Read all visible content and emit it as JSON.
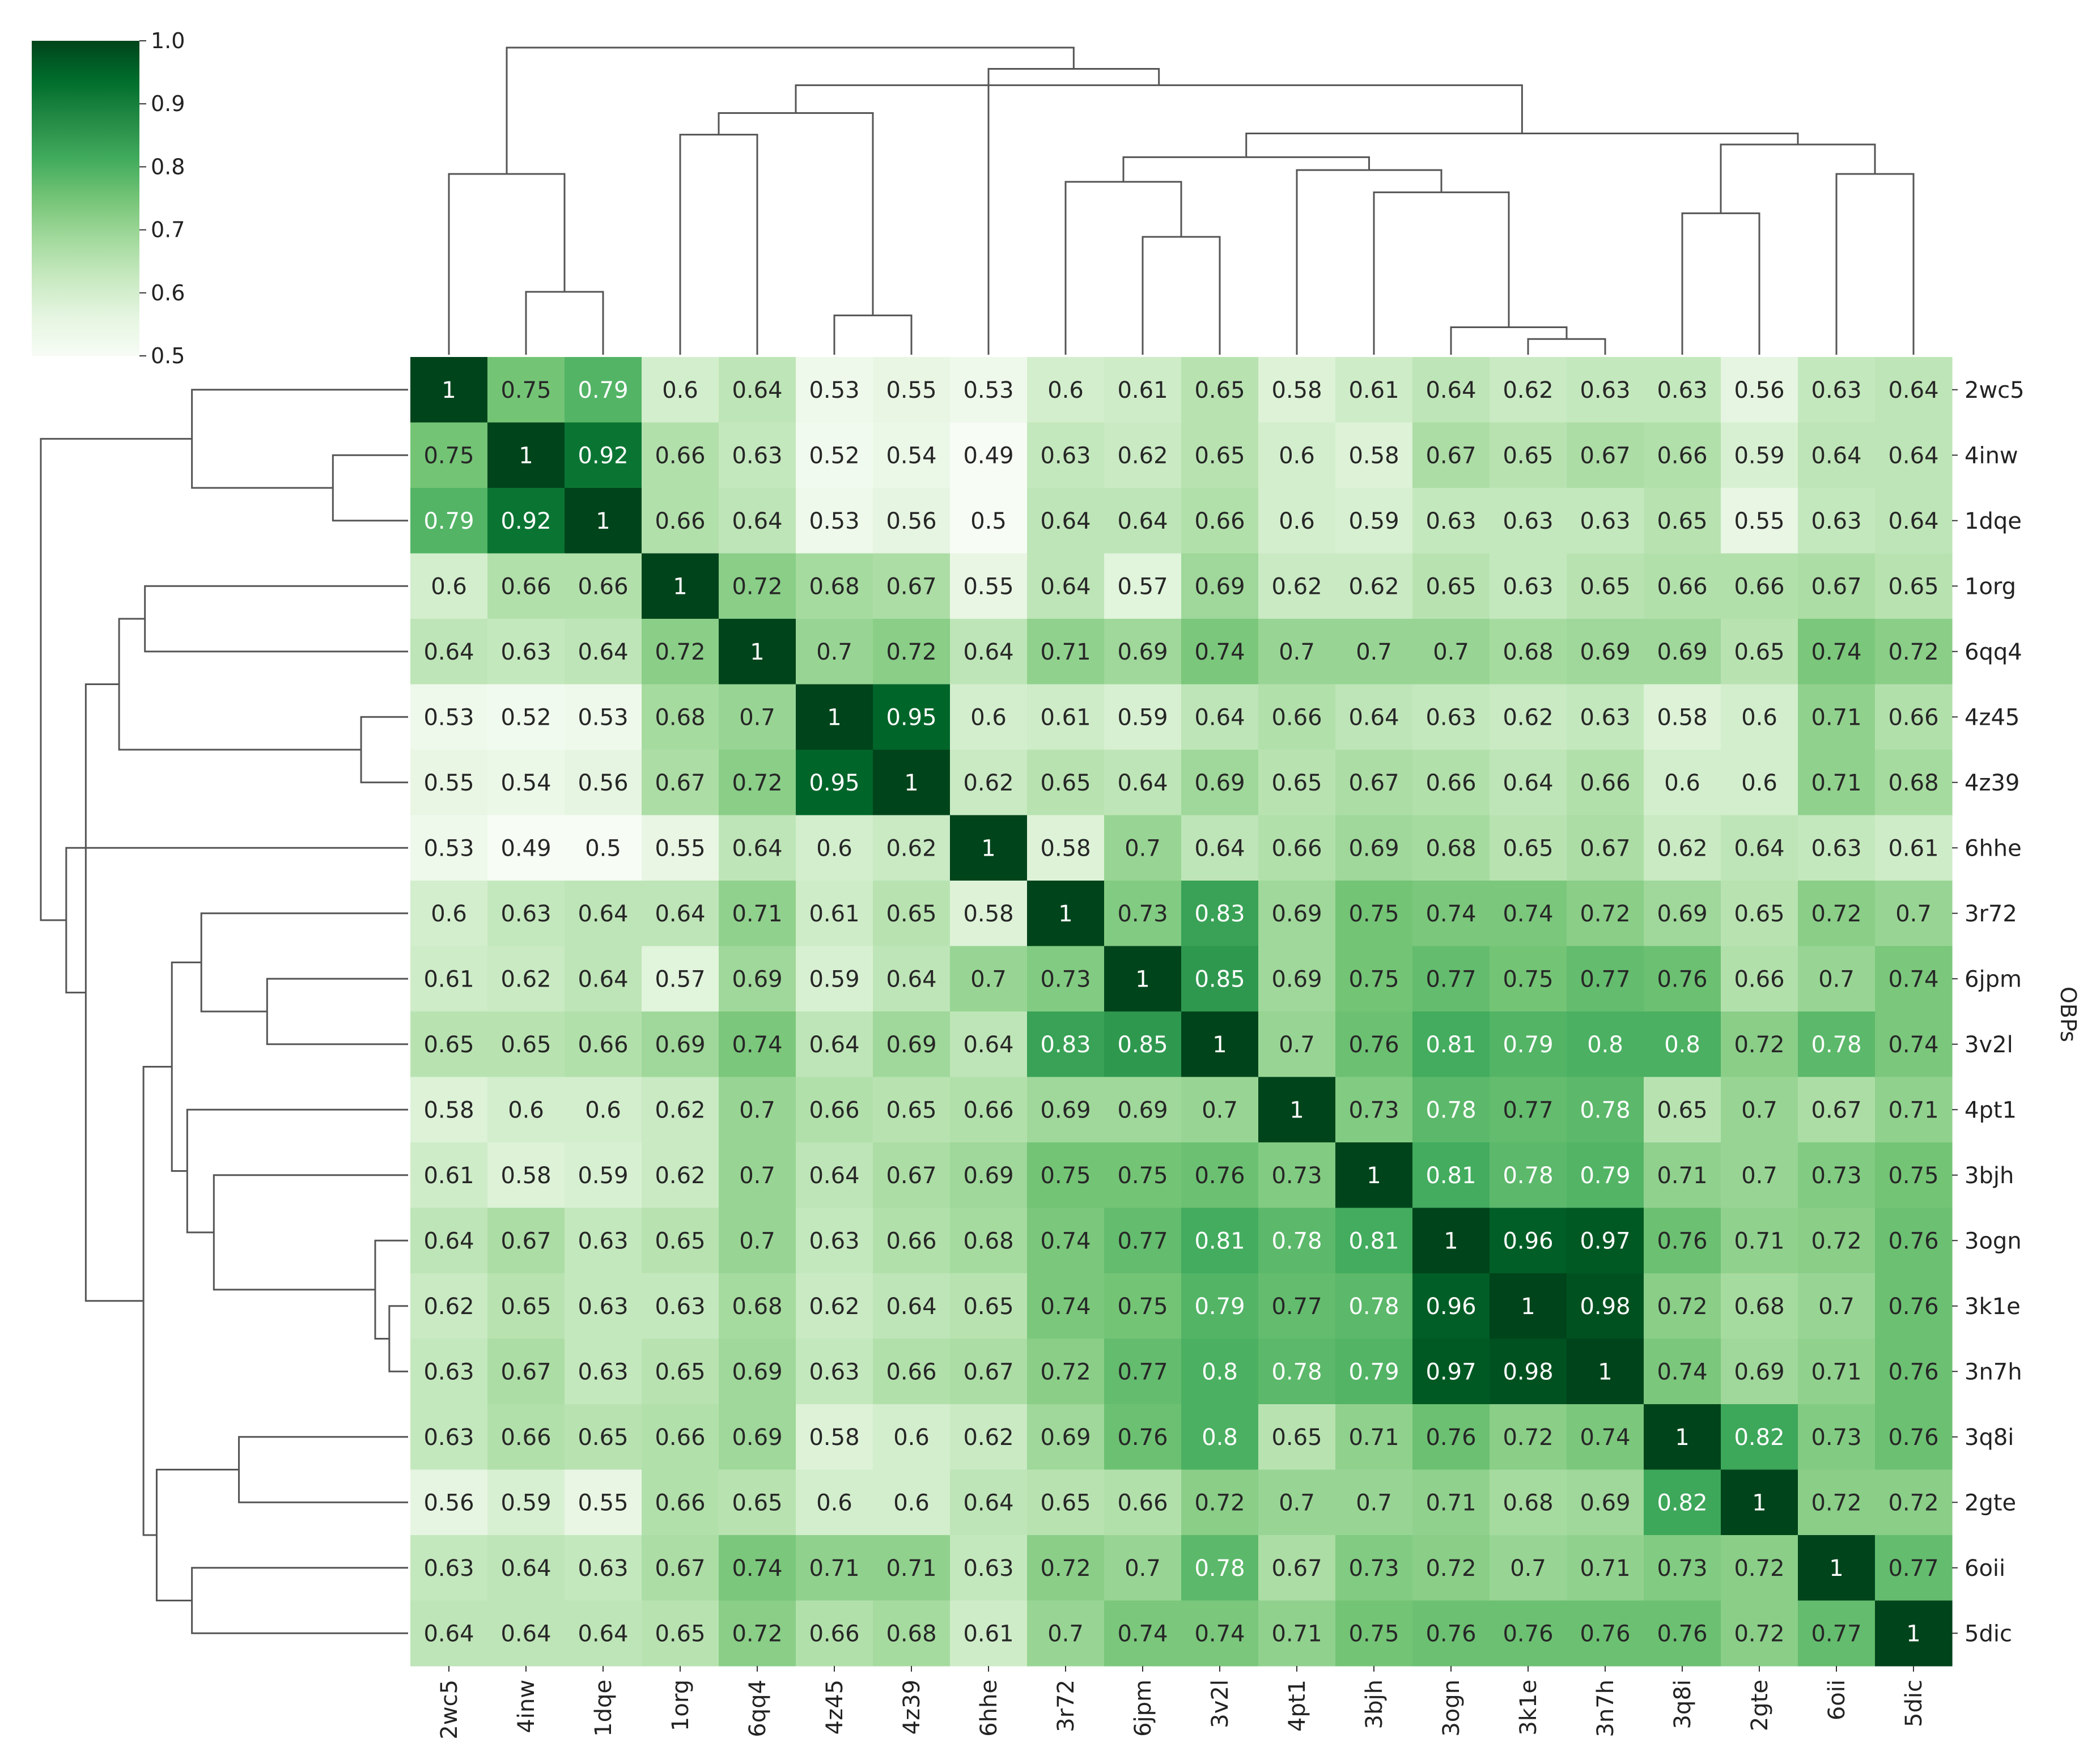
{
  "chart_data": {
    "type": "heatmap",
    "subtype": "clustered heatmap (clustermap) with dendrograms",
    "labels": [
      "2wc5",
      "4inw",
      "1dqe",
      "1org",
      "6qq4",
      "4z45",
      "4z39",
      "6hhe",
      "3r72",
      "6jpm",
      "3v2l",
      "4pt1",
      "3bjh",
      "3ogn",
      "3k1e",
      "3n7h",
      "3q8i",
      "2gte",
      "6oii",
      "5dic"
    ],
    "matrix": [
      [
        1,
        0.75,
        0.79,
        0.6,
        0.64,
        0.53,
        0.55,
        0.53,
        0.6,
        0.61,
        0.65,
        0.58,
        0.61,
        0.64,
        0.62,
        0.63,
        0.63,
        0.56,
        0.63,
        0.64
      ],
      [
        0.75,
        1,
        0.92,
        0.66,
        0.63,
        0.52,
        0.54,
        0.49,
        0.63,
        0.62,
        0.65,
        0.6,
        0.58,
        0.67,
        0.65,
        0.67,
        0.66,
        0.59,
        0.64,
        0.64
      ],
      [
        0.79,
        0.92,
        1,
        0.66,
        0.64,
        0.53,
        0.56,
        0.5,
        0.64,
        0.64,
        0.66,
        0.6,
        0.59,
        0.63,
        0.63,
        0.63,
        0.65,
        0.55,
        0.63,
        0.64
      ],
      [
        0.6,
        0.66,
        0.66,
        1,
        0.72,
        0.68,
        0.67,
        0.55,
        0.64,
        0.57,
        0.69,
        0.62,
        0.62,
        0.65,
        0.63,
        0.65,
        0.66,
        0.66,
        0.67,
        0.65
      ],
      [
        0.64,
        0.63,
        0.64,
        0.72,
        1,
        0.7,
        0.72,
        0.64,
        0.71,
        0.69,
        0.74,
        0.7,
        0.7,
        0.7,
        0.68,
        0.69,
        0.69,
        0.65,
        0.74,
        0.72
      ],
      [
        0.53,
        0.52,
        0.53,
        0.68,
        0.7,
        1,
        0.95,
        0.6,
        0.61,
        0.59,
        0.64,
        0.66,
        0.64,
        0.63,
        0.62,
        0.63,
        0.58,
        0.6,
        0.71,
        0.66
      ],
      [
        0.55,
        0.54,
        0.56,
        0.67,
        0.72,
        0.95,
        1,
        0.62,
        0.65,
        0.64,
        0.69,
        0.65,
        0.67,
        0.66,
        0.64,
        0.66,
        0.6,
        0.6,
        0.71,
        0.68
      ],
      [
        0.53,
        0.49,
        0.5,
        0.55,
        0.64,
        0.6,
        0.62,
        1,
        0.58,
        0.7,
        0.64,
        0.66,
        0.69,
        0.68,
        0.65,
        0.67,
        0.62,
        0.64,
        0.63,
        0.61
      ],
      [
        0.6,
        0.63,
        0.64,
        0.64,
        0.71,
        0.61,
        0.65,
        0.58,
        1,
        0.73,
        0.83,
        0.69,
        0.75,
        0.74,
        0.74,
        0.72,
        0.69,
        0.65,
        0.72,
        0.7
      ],
      [
        0.61,
        0.62,
        0.64,
        0.57,
        0.69,
        0.59,
        0.64,
        0.7,
        0.73,
        1,
        0.85,
        0.69,
        0.75,
        0.77,
        0.75,
        0.77,
        0.76,
        0.66,
        0.7,
        0.74
      ],
      [
        0.65,
        0.65,
        0.66,
        0.69,
        0.74,
        0.64,
        0.69,
        0.64,
        0.83,
        0.85,
        1,
        0.7,
        0.76,
        0.81,
        0.79,
        0.8,
        0.8,
        0.72,
        0.78,
        0.74
      ],
      [
        0.58,
        0.6,
        0.6,
        0.62,
        0.7,
        0.66,
        0.65,
        0.66,
        0.69,
        0.69,
        0.7,
        1,
        0.73,
        0.78,
        0.77,
        0.78,
        0.65,
        0.7,
        0.67,
        0.71
      ],
      [
        0.61,
        0.58,
        0.59,
        0.62,
        0.7,
        0.64,
        0.67,
        0.69,
        0.75,
        0.75,
        0.76,
        0.73,
        1,
        0.81,
        0.78,
        0.79,
        0.71,
        0.7,
        0.73,
        0.75
      ],
      [
        0.64,
        0.67,
        0.63,
        0.65,
        0.7,
        0.63,
        0.66,
        0.68,
        0.74,
        0.77,
        0.81,
        0.78,
        0.81,
        1,
        0.96,
        0.97,
        0.76,
        0.71,
        0.72,
        0.76
      ],
      [
        0.62,
        0.65,
        0.63,
        0.63,
        0.68,
        0.62,
        0.64,
        0.65,
        0.74,
        0.75,
        0.79,
        0.77,
        0.78,
        0.96,
        1,
        0.98,
        0.72,
        0.68,
        0.7,
        0.76
      ],
      [
        0.63,
        0.67,
        0.63,
        0.65,
        0.69,
        0.63,
        0.66,
        0.67,
        0.72,
        0.77,
        0.8,
        0.78,
        0.79,
        0.97,
        0.98,
        1,
        0.74,
        0.69,
        0.71,
        0.76
      ],
      [
        0.63,
        0.66,
        0.65,
        0.66,
        0.69,
        0.58,
        0.6,
        0.62,
        0.69,
        0.76,
        0.8,
        0.65,
        0.71,
        0.76,
        0.72,
        0.74,
        1,
        0.82,
        0.73,
        0.76
      ],
      [
        0.56,
        0.59,
        0.55,
        0.66,
        0.65,
        0.6,
        0.6,
        0.64,
        0.65,
        0.66,
        0.72,
        0.7,
        0.7,
        0.71,
        0.68,
        0.69,
        0.82,
        1,
        0.72,
        0.72
      ],
      [
        0.63,
        0.64,
        0.63,
        0.67,
        0.74,
        0.71,
        0.71,
        0.63,
        0.72,
        0.7,
        0.78,
        0.67,
        0.73,
        0.72,
        0.7,
        0.71,
        0.73,
        0.72,
        1,
        0.77
      ],
      [
        0.64,
        0.64,
        0.64,
        0.65,
        0.72,
        0.66,
        0.68,
        0.61,
        0.7,
        0.74,
        0.74,
        0.71,
        0.75,
        0.76,
        0.76,
        0.76,
        0.76,
        0.72,
        0.77,
        1
      ]
    ],
    "ylabel": "OBPs",
    "xlabel": "",
    "title": "",
    "colormap": "Greens",
    "vmin": 0.5,
    "vmax": 1.0,
    "annotations": "cell values printed in each cell",
    "colorbar": {
      "ticks": [
        "0.5",
        "0.6",
        "0.7",
        "0.8",
        "0.9",
        "1.0"
      ],
      "placement": "top-left"
    },
    "dendrograms": [
      "top (columns)",
      "left (rows)"
    ],
    "tick_label_placement": {
      "x": "bottom, rotated 90°",
      "y": "right"
    },
    "colors": {
      "low": "#f7fcf5",
      "high": "#00441b",
      "dendrogram_line": "#555555"
    }
  }
}
